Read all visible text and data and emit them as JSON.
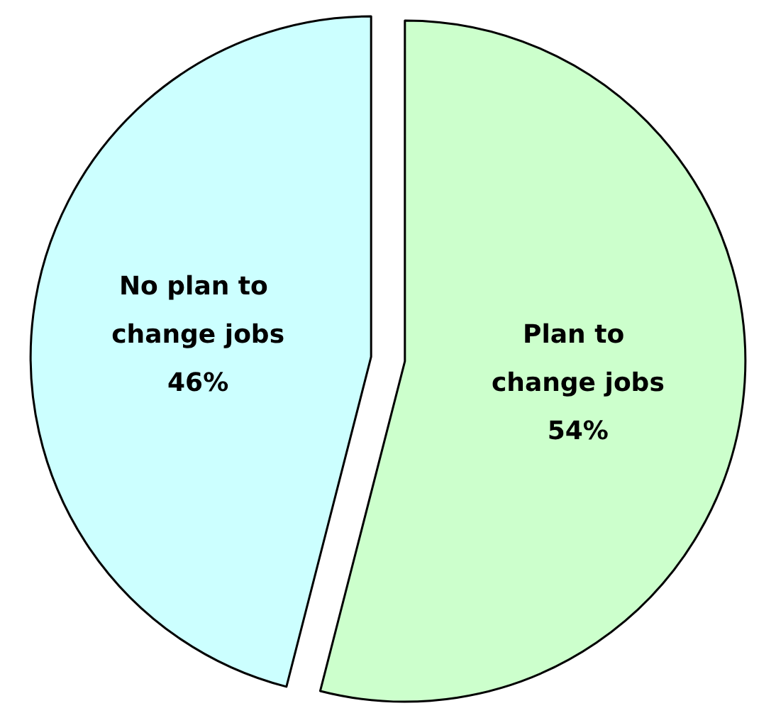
{
  "chart_data": {
    "type": "pie",
    "categories": [
      "Plan to change jobs",
      "No plan to change jobs"
    ],
    "values": [
      54,
      46
    ],
    "value_labels": [
      "54%",
      "46%"
    ],
    "colors": [
      "#ccffcc",
      "#ccffff"
    ],
    "legend": false
  }
}
